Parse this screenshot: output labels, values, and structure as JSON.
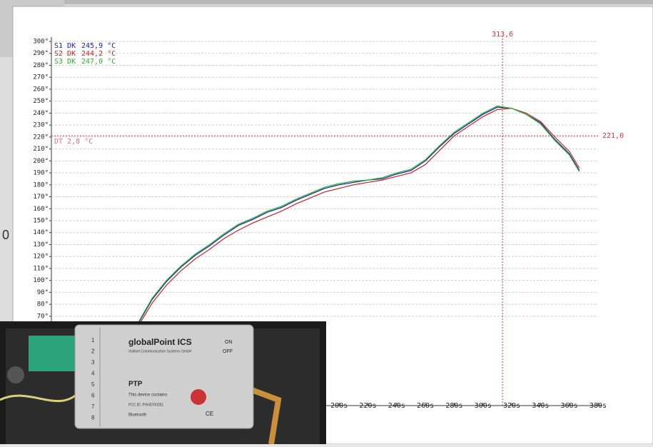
{
  "background_text": "0",
  "photo": {
    "title": "globalPoint ICS",
    "subtitle": "Vaillant Communication Systems GmbH",
    "on": "ON",
    "off": "OFF",
    "model": "PTP",
    "note": "This device contains",
    "fcc": "FCC ID: PVH0700201",
    "bluetooth": "Bluetooth",
    "ce": "CE",
    "ports": [
      "1",
      "2",
      "3",
      "4",
      "5",
      "6",
      "7",
      "8"
    ]
  },
  "chart_data": {
    "type": "line",
    "x": [
      60,
      70,
      80,
      90,
      100,
      110,
      120,
      130,
      140,
      150,
      160,
      170,
      180,
      190,
      200,
      210,
      220,
      230,
      240,
      250,
      260,
      270,
      280,
      290,
      300,
      310,
      320,
      330,
      340,
      350,
      360,
      367
    ],
    "series": [
      {
        "name": "S1 DK",
        "readout": "245,9 °C",
        "color": "#1a1aa8",
        "values": [
          63,
          84,
          99,
          111,
          121,
          129,
          138,
          146,
          151,
          157,
          161,
          167,
          172,
          177,
          180,
          182,
          184,
          185,
          189,
          192,
          200,
          212,
          223,
          231,
          239,
          245,
          244,
          239,
          232,
          218,
          206,
          192
        ]
      },
      {
        "name": "S2 DK",
        "readout": "244,2 °C",
        "color": "#cc2020",
        "values": [
          61,
          81,
          96,
          108,
          118,
          126,
          135,
          142,
          148,
          153,
          158,
          164,
          169,
          174,
          177,
          180,
          182,
          184,
          187,
          190,
          197,
          209,
          221,
          229,
          237,
          243,
          244,
          240,
          233,
          220,
          208,
          194
        ]
      },
      {
        "name": "S3 DK",
        "readout": "247,0 °C",
        "color": "#22b822",
        "values": [
          64,
          85,
          100,
          112,
          122,
          130,
          139,
          147,
          152,
          158,
          162,
          168,
          173,
          178,
          181,
          183,
          184,
          186,
          190,
          193,
          201,
          213,
          224,
          232,
          240,
          246,
          244,
          239,
          231,
          217,
          205,
          191
        ]
      }
    ],
    "xlim": [
      0,
      380
    ],
    "ylim": [
      0,
      300
    ],
    "xticks": [
      {
        "value": 200,
        "label": "200s"
      },
      {
        "value": 220,
        "label": "220s"
      },
      {
        "value": 240,
        "label": "240s"
      },
      {
        "value": 260,
        "label": "260s"
      },
      {
        "value": 280,
        "label": "280s"
      },
      {
        "value": 300,
        "label": "300s"
      },
      {
        "value": 320,
        "label": "320s"
      },
      {
        "value": 340,
        "label": "340s"
      },
      {
        "value": 360,
        "label": "360s"
      },
      {
        "value": 380,
        "label": "380s"
      }
    ],
    "yticks": [
      {
        "value": 70,
        "label": "70°"
      },
      {
        "value": 80,
        "label": "80°"
      },
      {
        "value": 90,
        "label": "90°"
      },
      {
        "value": 100,
        "label": "100°"
      },
      {
        "value": 110,
        "label": "110°"
      },
      {
        "value": 120,
        "label": "120°"
      },
      {
        "value": 130,
        "label": "130°"
      },
      {
        "value": 140,
        "label": "140°"
      },
      {
        "value": 150,
        "label": "150°"
      },
      {
        "value": 160,
        "label": "160°"
      },
      {
        "value": 170,
        "label": "170°"
      },
      {
        "value": 180,
        "label": "180°"
      },
      {
        "value": 190,
        "label": "190°"
      },
      {
        "value": 200,
        "label": "200°"
      },
      {
        "value": 210,
        "label": "210°"
      },
      {
        "value": 220,
        "label": "220°"
      },
      {
        "value": 230,
        "label": "230°"
      },
      {
        "value": 240,
        "label": "240°"
      },
      {
        "value": 250,
        "label": "250°"
      },
      {
        "value": 260,
        "label": "260°"
      },
      {
        "value": 270,
        "label": "270°"
      },
      {
        "value": 280,
        "label": "280°"
      },
      {
        "value": 290,
        "label": "290°"
      },
      {
        "value": 300,
        "label": "300°"
      }
    ],
    "grid": true,
    "cursor": {
      "x": 313.6,
      "x_label": "313,6",
      "y": 221.0,
      "y_label": "221,0",
      "color": "#e03030"
    },
    "annotation": "DT  2,8 °C"
  }
}
